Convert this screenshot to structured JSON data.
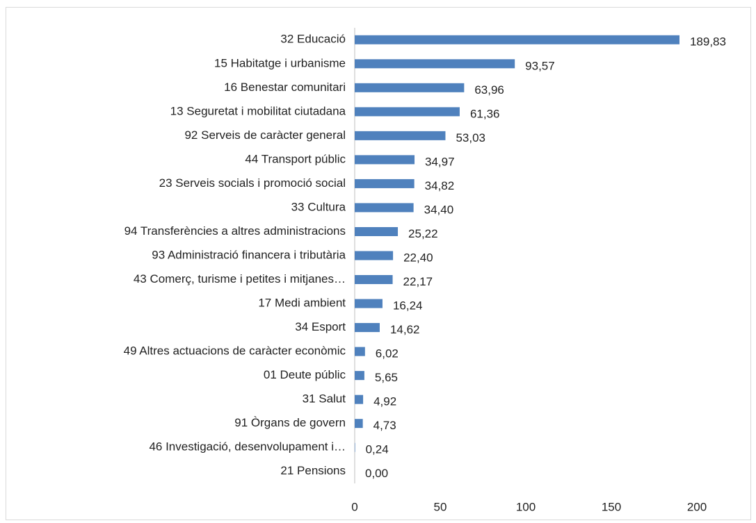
{
  "chart_data": {
    "type": "bar",
    "orientation": "horizontal",
    "categories": [
      "32 Educació",
      "15 Habitatge i urbanisme",
      "16 Benestar comunitari",
      "13 Seguretat i mobilitat ciutadana",
      "92 Serveis de caràcter general",
      "44 Transport públic",
      "23 Serveis socials i promoció social",
      "33 Cultura",
      "94 Transferències a altres administracions",
      "93 Administració financera i tributària",
      "43 Comerç, turisme i petites i mitjanes…",
      "17 Medi ambient",
      "34 Esport",
      "49 Altres actuacions de caràcter econòmic",
      "01 Deute públic",
      "31 Salut",
      "91 Òrgans de govern",
      "46 Investigació, desenvolupament i…",
      "21 Pensions"
    ],
    "values": [
      189.83,
      93.57,
      63.96,
      61.36,
      53.03,
      34.97,
      34.82,
      34.4,
      25.22,
      22.4,
      22.17,
      16.24,
      14.62,
      6.02,
      5.65,
      4.92,
      4.73,
      0.24,
      0.0
    ],
    "value_labels": [
      "189,83",
      "93,57",
      "63,96",
      "61,36",
      "53,03",
      "34,97",
      "34,82",
      "34,40",
      "25,22",
      "22,40",
      "22,17",
      "16,24",
      "14,62",
      "6,02",
      "5,65",
      "4,92",
      "4,73",
      "0,24",
      "0,00"
    ],
    "color": "#4f81bd",
    "xlim": [
      0,
      200
    ],
    "xticks": [
      0,
      50,
      100,
      150,
      200
    ],
    "grid": false
  }
}
